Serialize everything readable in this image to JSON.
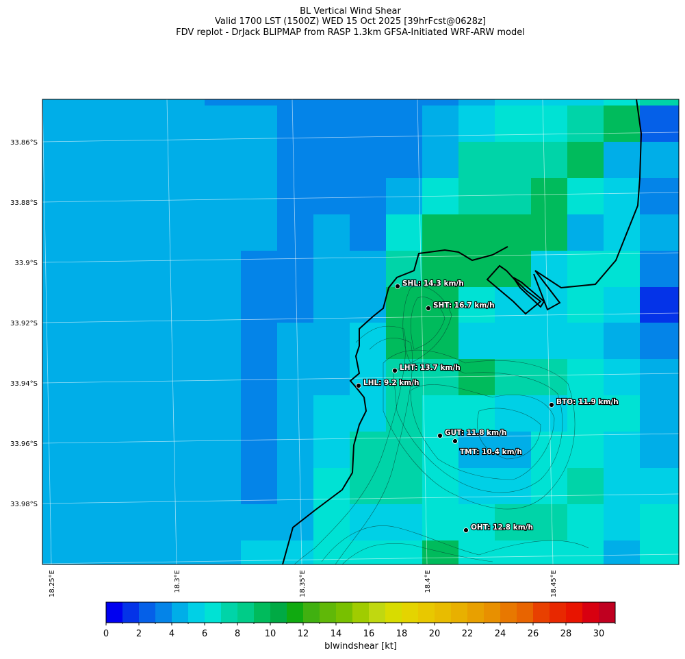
{
  "title": {
    "line1": "BL Vertical Wind Shear",
    "line2": "Valid 1700 LST (1500Z) WED 15 Oct 2025 [39hrFcst@0628z]",
    "line3": "FDV replot - DrJack BLIPMAP from RASP 1.3km GFSA-Initiated WRF-ARW model"
  },
  "y_ticks": [
    "33.86°S",
    "33.88°S",
    "33.9°S",
    "33.92°S",
    "33.94°S",
    "33.96°S",
    "33.98°S"
  ],
  "x_ticks": [
    "18.25°E",
    "18.3°E",
    "18.35°E",
    "18.4°E",
    "18.45°E"
  ],
  "stations": [
    {
      "id": "SHL",
      "label": "SHL: 14.3 km/h"
    },
    {
      "id": "SHT",
      "label": "SHT: 16.7 km/h"
    },
    {
      "id": "LHT",
      "label": "LHT: 13.7 km/h"
    },
    {
      "id": "LHL",
      "label": "LHL: 9.2 km/h"
    },
    {
      "id": "BTO",
      "label": "BTO: 11.9 km/h"
    },
    {
      "id": "GUT",
      "label": "GUT: 11.8 km/h"
    },
    {
      "id": "TMT",
      "label": "TMT: 10.4 km/h"
    },
    {
      "id": "OHT",
      "label": "OHT: 12.8 km/h"
    }
  ],
  "colorbar": {
    "label": "blwindshear [kt]",
    "ticks": [
      "0",
      "2",
      "4",
      "6",
      "8",
      "10",
      "12",
      "14",
      "16",
      "18",
      "20",
      "22",
      "24",
      "26",
      "28",
      "30"
    ],
    "range": [
      0,
      31
    ],
    "colors": [
      "#0000f0",
      "#0433e8",
      "#0560e8",
      "#0484e8",
      "#00aee8",
      "#00d0e6",
      "#00e2d4",
      "#00d4a8",
      "#00cc88",
      "#00bb5c",
      "#00aa44",
      "#10aa10",
      "#40b010",
      "#60b808",
      "#78c000",
      "#a0cc00",
      "#c0d810",
      "#d8dc00",
      "#e4d400",
      "#e8c800",
      "#e8bc00",
      "#e8b000",
      "#e8a000",
      "#e89000",
      "#e87800",
      "#e86400",
      "#e84000",
      "#e82800",
      "#e81400",
      "#d80010",
      "#c00020"
    ]
  },
  "field_kt_bins": [
    [
      4,
      3,
      3,
      3,
      3,
      3,
      3,
      3,
      4,
      5,
      5,
      5,
      6,
      7
    ],
    [
      4,
      4,
      4,
      3,
      3,
      3,
      3,
      4,
      5,
      6,
      6,
      7,
      9,
      2
    ],
    [
      4,
      4,
      4,
      3,
      3,
      3,
      3,
      4,
      7,
      7,
      7,
      9,
      4,
      4
    ],
    [
      4,
      4,
      4,
      3,
      3,
      3,
      4,
      6,
      7,
      7,
      9,
      6,
      5,
      3
    ],
    [
      4,
      4,
      4,
      3,
      4,
      3,
      6,
      9,
      9,
      9,
      9,
      4,
      5,
      4
    ],
    [
      4,
      4,
      3,
      3,
      4,
      4,
      7,
      9,
      9,
      9,
      5,
      6,
      6,
      3
    ],
    [
      4,
      4,
      3,
      3,
      4,
      4,
      9,
      9,
      6,
      5,
      5,
      6,
      5,
      1
    ],
    [
      4,
      4,
      3,
      4,
      4,
      5,
      9,
      9,
      5,
      5,
      5,
      5,
      4,
      3
    ],
    [
      4,
      4,
      3,
      4,
      4,
      5,
      7,
      7,
      9,
      7,
      7,
      6,
      5,
      4
    ],
    [
      4,
      4,
      3,
      4,
      5,
      5,
      7,
      6,
      6,
      5,
      5,
      6,
      6,
      4
    ],
    [
      4,
      4,
      3,
      4,
      5,
      7,
      7,
      6,
      4,
      4,
      6,
      6,
      5,
      4
    ],
    [
      4,
      4,
      3,
      4,
      6,
      7,
      7,
      6,
      5,
      5,
      6,
      7,
      5,
      5
    ],
    [
      4,
      4,
      4,
      4,
      6,
      5,
      5,
      6,
      6,
      7,
      7,
      6,
      5,
      6
    ],
    [
      4,
      4,
      5,
      5,
      6,
      6,
      6,
      9,
      6,
      6,
      6,
      6,
      4,
      6
    ]
  ]
}
